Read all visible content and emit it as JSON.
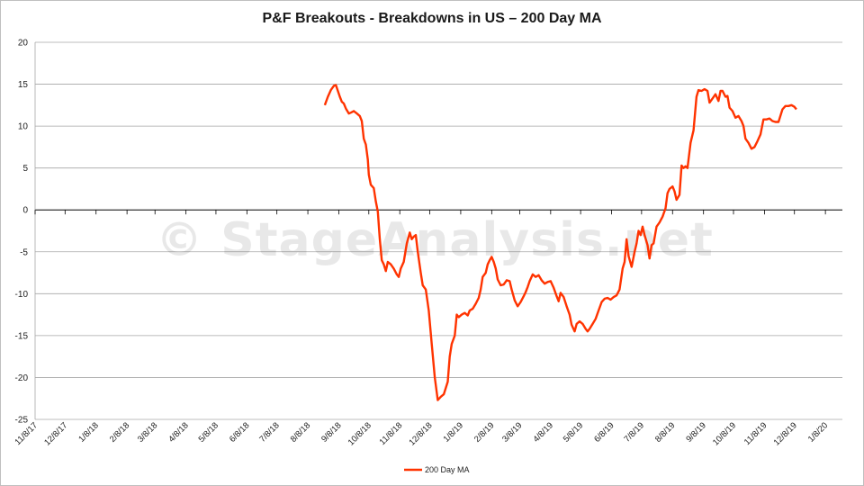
{
  "watermark": "© StageAnalysis.net",
  "chart_data": {
    "type": "line",
    "title": "P&F Breakouts - Breakdowns in US – 200 Day MA",
    "xlabel": "",
    "ylabel": "",
    "ylim": [
      -25,
      20
    ],
    "yticks": [
      20,
      15,
      10,
      5,
      0,
      -5,
      -10,
      -15,
      -20,
      -25
    ],
    "x_tick_labels": [
      "11/8/17",
      "12/8/17",
      "1/8/18",
      "2/8/18",
      "3/8/18",
      "4/8/18",
      "5/8/18",
      "6/8/18",
      "7/8/18",
      "8/8/18",
      "9/8/18",
      "10/8/18",
      "11/8/18",
      "12/8/18",
      "1/8/19",
      "2/8/19",
      "3/8/19",
      "4/8/19",
      "5/8/19",
      "6/8/19",
      "7/8/19",
      "8/8/19",
      "9/8/19",
      "10/8/19",
      "11/8/19",
      "12/8/19",
      "1/8/20"
    ],
    "x_start": "2017-11-08",
    "x_end": "2020-01-25",
    "grid": true,
    "legend_position": "bottom",
    "color": "#ff3300",
    "series": [
      {
        "name": "200 Day MA",
        "points": [
          [
            "2018-08-25",
            12.5
          ],
          [
            "2018-08-28",
            13.5
          ],
          [
            "2018-08-31",
            14.3
          ],
          [
            "2018-09-03",
            14.8
          ],
          [
            "2018-09-05",
            14.9
          ],
          [
            "2018-09-07",
            14.2
          ],
          [
            "2018-09-09",
            13.5
          ],
          [
            "2018-09-11",
            12.9
          ],
          [
            "2018-09-13",
            12.7
          ],
          [
            "2018-09-15",
            12.1
          ],
          [
            "2018-09-18",
            11.5
          ],
          [
            "2018-09-20",
            11.6
          ],
          [
            "2018-09-23",
            11.8
          ],
          [
            "2018-09-26",
            11.5
          ],
          [
            "2018-09-29",
            11.2
          ],
          [
            "2018-10-01",
            10.6
          ],
          [
            "2018-10-03",
            8.5
          ],
          [
            "2018-10-05",
            7.8
          ],
          [
            "2018-10-07",
            6.0
          ],
          [
            "2018-10-08",
            4.2
          ],
          [
            "2018-10-10",
            3.0
          ],
          [
            "2018-10-13",
            2.6
          ],
          [
            "2018-10-15",
            1.0
          ],
          [
            "2018-10-17",
            -0.2
          ],
          [
            "2018-10-19",
            -3.5
          ],
          [
            "2018-10-21",
            -6.0
          ],
          [
            "2018-10-23",
            -6.5
          ],
          [
            "2018-10-25",
            -7.3
          ],
          [
            "2018-10-27",
            -6.2
          ],
          [
            "2018-10-30",
            -6.5
          ],
          [
            "2018-11-02",
            -7.0
          ],
          [
            "2018-11-05",
            -7.7
          ],
          [
            "2018-11-07",
            -8.0
          ],
          [
            "2018-11-09",
            -7.0
          ],
          [
            "2018-11-12",
            -6.2
          ],
          [
            "2018-11-15",
            -4.0
          ],
          [
            "2018-11-18",
            -2.7
          ],
          [
            "2018-11-20",
            -3.5
          ],
          [
            "2018-11-22",
            -3.2
          ],
          [
            "2018-11-24",
            -3.0
          ],
          [
            "2018-11-26",
            -5.0
          ],
          [
            "2018-11-29",
            -7.5
          ],
          [
            "2018-12-01",
            -9.0
          ],
          [
            "2018-12-04",
            -9.5
          ],
          [
            "2018-12-07",
            -12.0
          ],
          [
            "2018-12-10",
            -16.0
          ],
          [
            "2018-12-13",
            -20.0
          ],
          [
            "2018-12-16",
            -22.7
          ],
          [
            "2018-12-19",
            -22.3
          ],
          [
            "2018-12-22",
            -22.0
          ],
          [
            "2018-12-26",
            -20.5
          ],
          [
            "2018-12-28",
            -17.5
          ],
          [
            "2018-12-30",
            -16.0
          ],
          [
            "2019-01-02",
            -15.0
          ],
          [
            "2019-01-04",
            -12.5
          ],
          [
            "2019-01-06",
            -12.8
          ],
          [
            "2019-01-09",
            -12.5
          ],
          [
            "2019-01-12",
            -12.3
          ],
          [
            "2019-01-15",
            -12.6
          ],
          [
            "2019-01-17",
            -12.0
          ],
          [
            "2019-01-20",
            -11.8
          ],
          [
            "2019-01-23",
            -11.2
          ],
          [
            "2019-01-26",
            -10.5
          ],
          [
            "2019-01-28",
            -9.5
          ],
          [
            "2019-01-30",
            -8.0
          ],
          [
            "2019-02-02",
            -7.5
          ],
          [
            "2019-02-04",
            -6.5
          ],
          [
            "2019-02-06",
            -6.0
          ],
          [
            "2019-02-08",
            -5.6
          ],
          [
            "2019-02-10",
            -6.2
          ],
          [
            "2019-02-12",
            -7.0
          ],
          [
            "2019-02-14",
            -8.3
          ],
          [
            "2019-02-17",
            -9.0
          ],
          [
            "2019-02-20",
            -8.9
          ],
          [
            "2019-02-23",
            -8.4
          ],
          [
            "2019-02-26",
            -8.5
          ],
          [
            "2019-02-28",
            -9.5
          ],
          [
            "2019-03-03",
            -10.8
          ],
          [
            "2019-03-06",
            -11.5
          ],
          [
            "2019-03-09",
            -11.0
          ],
          [
            "2019-03-12",
            -10.3
          ],
          [
            "2019-03-14",
            -9.8
          ],
          [
            "2019-03-16",
            -9.2
          ],
          [
            "2019-03-18",
            -8.5
          ],
          [
            "2019-03-21",
            -7.7
          ],
          [
            "2019-03-24",
            -8.0
          ],
          [
            "2019-03-27",
            -7.8
          ],
          [
            "2019-03-30",
            -8.4
          ],
          [
            "2019-04-02",
            -8.8
          ],
          [
            "2019-04-05",
            -8.6
          ],
          [
            "2019-04-08",
            -8.5
          ],
          [
            "2019-04-11",
            -9.3
          ],
          [
            "2019-04-14",
            -10.3
          ],
          [
            "2019-04-16",
            -10.9
          ],
          [
            "2019-04-18",
            -9.9
          ],
          [
            "2019-04-21",
            -10.4
          ],
          [
            "2019-04-24",
            -11.5
          ],
          [
            "2019-04-27",
            -12.5
          ],
          [
            "2019-04-29",
            -13.7
          ],
          [
            "2019-05-02",
            -14.5
          ],
          [
            "2019-05-04",
            -13.6
          ],
          [
            "2019-05-07",
            -13.3
          ],
          [
            "2019-05-10",
            -13.6
          ],
          [
            "2019-05-13",
            -14.2
          ],
          [
            "2019-05-15",
            -14.5
          ],
          [
            "2019-05-17",
            -14.2
          ],
          [
            "2019-05-20",
            -13.6
          ],
          [
            "2019-05-23",
            -13.0
          ],
          [
            "2019-05-26",
            -12.0
          ],
          [
            "2019-05-29",
            -11.0
          ],
          [
            "2019-06-01",
            -10.6
          ],
          [
            "2019-06-04",
            -10.5
          ],
          [
            "2019-06-07",
            -10.7
          ],
          [
            "2019-06-10",
            -10.4
          ],
          [
            "2019-06-13",
            -10.2
          ],
          [
            "2019-06-16",
            -9.5
          ],
          [
            "2019-06-19",
            -7.0
          ],
          [
            "2019-06-21",
            -6.2
          ],
          [
            "2019-06-23",
            -3.5
          ],
          [
            "2019-06-25",
            -5.5
          ],
          [
            "2019-06-28",
            -6.8
          ],
          [
            "2019-07-01",
            -5.0
          ],
          [
            "2019-07-03",
            -4.0
          ],
          [
            "2019-07-05",
            -2.5
          ],
          [
            "2019-07-07",
            -3.0
          ],
          [
            "2019-07-09",
            -2.0
          ],
          [
            "2019-07-11",
            -3.0
          ],
          [
            "2019-07-14",
            -4.2
          ],
          [
            "2019-07-16",
            -5.8
          ],
          [
            "2019-07-18",
            -4.2
          ],
          [
            "2019-07-20",
            -4.0
          ],
          [
            "2019-07-23",
            -2.0
          ],
          [
            "2019-07-26",
            -1.5
          ],
          [
            "2019-07-29",
            -0.8
          ],
          [
            "2019-08-01",
            0.2
          ],
          [
            "2019-08-03",
            2.0
          ],
          [
            "2019-08-05",
            2.5
          ],
          [
            "2019-08-08",
            2.8
          ],
          [
            "2019-08-10",
            2.2
          ],
          [
            "2019-08-12",
            1.2
          ],
          [
            "2019-08-15",
            1.8
          ],
          [
            "2019-08-17",
            5.3
          ],
          [
            "2019-08-19",
            5.0
          ],
          [
            "2019-08-21",
            5.2
          ],
          [
            "2019-08-23",
            5.0
          ],
          [
            "2019-08-26",
            8.0
          ],
          [
            "2019-08-29",
            9.5
          ],
          [
            "2019-09-01",
            13.5
          ],
          [
            "2019-09-03",
            14.3
          ],
          [
            "2019-09-06",
            14.2
          ],
          [
            "2019-09-09",
            14.4
          ],
          [
            "2019-09-12",
            14.2
          ],
          [
            "2019-09-14",
            12.8
          ],
          [
            "2019-09-17",
            13.3
          ],
          [
            "2019-09-20",
            13.8
          ],
          [
            "2019-09-23",
            13.0
          ],
          [
            "2019-09-25",
            14.2
          ],
          [
            "2019-09-27",
            14.2
          ],
          [
            "2019-09-30",
            13.5
          ],
          [
            "2019-10-02",
            13.6
          ],
          [
            "2019-10-04",
            12.2
          ],
          [
            "2019-10-07",
            11.8
          ],
          [
            "2019-10-10",
            11.0
          ],
          [
            "2019-10-13",
            11.2
          ],
          [
            "2019-10-16",
            10.6
          ],
          [
            "2019-10-18",
            10.0
          ],
          [
            "2019-10-20",
            8.5
          ],
          [
            "2019-10-23",
            8.0
          ],
          [
            "2019-10-26",
            7.3
          ],
          [
            "2019-10-29",
            7.5
          ],
          [
            "2019-11-01",
            8.2
          ],
          [
            "2019-11-04",
            9.0
          ],
          [
            "2019-11-07",
            10.8
          ],
          [
            "2019-11-10",
            10.8
          ],
          [
            "2019-11-13",
            10.9
          ],
          [
            "2019-11-16",
            10.6
          ],
          [
            "2019-11-19",
            10.5
          ],
          [
            "2019-11-22",
            10.5
          ],
          [
            "2019-11-26",
            12.0
          ],
          [
            "2019-11-29",
            12.4
          ],
          [
            "2019-12-02",
            12.4
          ],
          [
            "2019-12-05",
            12.5
          ],
          [
            "2019-12-08",
            12.3
          ],
          [
            "2019-12-10",
            12.0
          ]
        ]
      }
    ]
  }
}
